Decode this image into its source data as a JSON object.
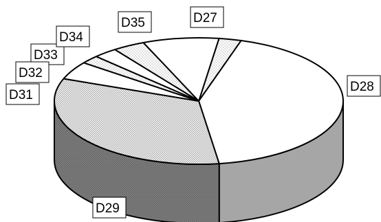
{
  "chart_data": {
    "type": "pie",
    "style": "3d-exploded-perspective",
    "legend": "none",
    "labels": [
      "D27",
      "D28",
      "D29",
      "D31",
      "D32",
      "D33",
      "D34",
      "D35"
    ],
    "values": [
      2.5,
      43.0,
      33.0,
      4.6,
      2.1,
      2.7,
      3.6,
      8.5
    ],
    "fills": [
      "dots-light",
      "white",
      "dots",
      "white",
      "dots-light",
      "white",
      "dots-light",
      "white"
    ],
    "side_colors": {
      "D28": "#a6a6a6",
      "D29": "#7f7f7f"
    }
  }
}
